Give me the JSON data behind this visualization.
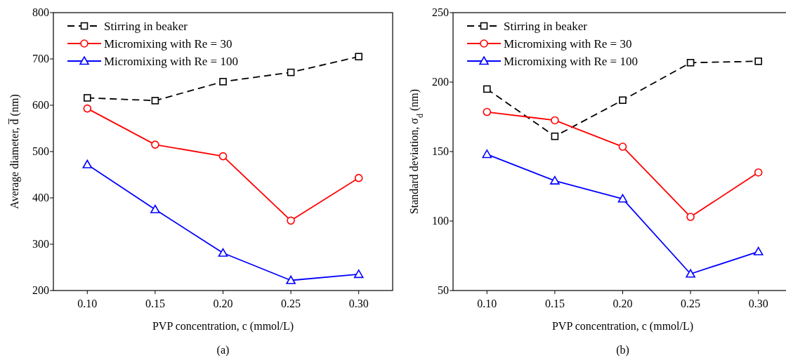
{
  "chart_data": [
    {
      "type": "line",
      "xlabel": "PVP concentration, c (mmol/L)",
      "ylabel": "Average diameter, d̅ (nm)",
      "x": [
        0.1,
        0.15,
        0.2,
        0.25,
        0.3
      ],
      "xlim": [
        0.075,
        0.325
      ],
      "xticks": [
        {
          "value": 0.1,
          "label": "0.10"
        },
        {
          "value": 0.15,
          "label": "0.15"
        },
        {
          "value": 0.2,
          "label": "0.20"
        },
        {
          "value": 0.25,
          "label": "0.25"
        },
        {
          "value": 0.3,
          "label": "0.30"
        }
      ],
      "ylim": [
        200,
        800
      ],
      "yticks": [
        200,
        300,
        400,
        500,
        600,
        700,
        800
      ],
      "legend": "top left",
      "grid": false,
      "annotations": [
        "(a)"
      ],
      "series": [
        {
          "name": "Stirring in beaker",
          "color": "#000000",
          "marker": "square",
          "line_style": "dashed",
          "values": [
            616,
            610,
            651,
            671,
            705
          ]
        },
        {
          "name": "Micromixing with Re = 30",
          "color": "#ff0000",
          "marker": "circle",
          "line_style": "solid",
          "values": [
            593,
            515,
            490,
            351,
            443
          ]
        },
        {
          "name": "Micromixing with Re = 100",
          "color": "#0000ff",
          "marker": "triangle",
          "line_style": "solid",
          "values": [
            472,
            375,
            281,
            222,
            235
          ]
        }
      ]
    },
    {
      "type": "line",
      "xlabel": "PVP concentration, c (mmol/L)",
      "ylabel": "Standard deviation, σ$_{d}$ (nm)",
      "x": [
        0.1,
        0.15,
        0.2,
        0.25,
        0.3
      ],
      "xlim": [
        0.075,
        0.325
      ],
      "xticks": [
        {
          "value": 0.1,
          "label": "0.10"
        },
        {
          "value": 0.15,
          "label": "0.15"
        },
        {
          "value": 0.2,
          "label": "0.20"
        },
        {
          "value": 0.25,
          "label": "0.25"
        },
        {
          "value": 0.3,
          "label": "0.30"
        }
      ],
      "ylim": [
        50,
        250
      ],
      "yticks": [
        50,
        100,
        150,
        200,
        250
      ],
      "legend": "top left",
      "grid": false,
      "annotations": [
        "(b)"
      ],
      "series": [
        {
          "name": "Stirring in beaker",
          "color": "#000000",
          "marker": "square",
          "line_style": "dashed",
          "values": [
            195,
            161,
            187,
            214,
            215
          ]
        },
        {
          "name": "Micromixing with Re = 30",
          "color": "#ff0000",
          "marker": "circle",
          "line_style": "solid",
          "values": [
            178.5,
            172.5,
            153.5,
            103,
            135
          ]
        },
        {
          "name": "Micromixing with Re = 100",
          "color": "#0000ff",
          "marker": "triangle",
          "line_style": "solid",
          "values": [
            148,
            129,
            116,
            62,
            78
          ]
        }
      ]
    }
  ]
}
